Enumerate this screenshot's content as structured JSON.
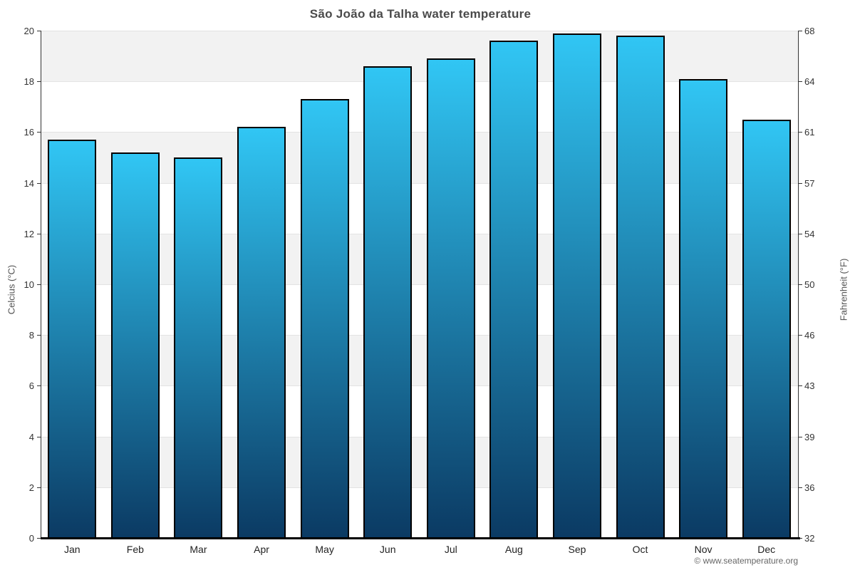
{
  "title": "São João da Talha water temperature",
  "footer": {
    "credit": "© www.seatemperature.org"
  },
  "chart_data": {
    "type": "bar",
    "title": "São João da Talha water temperature",
    "categories": [
      "Jan",
      "Feb",
      "Mar",
      "Apr",
      "May",
      "Jun",
      "Jul",
      "Aug",
      "Sep",
      "Oct",
      "Nov",
      "Dec"
    ],
    "values": [
      15.7,
      15.2,
      15.0,
      16.2,
      17.3,
      18.6,
      18.9,
      19.6,
      19.9,
      19.8,
      18.1,
      16.5
    ],
    "series_name": "water temperature",
    "xlabel": "",
    "ylabel_left": "Celcius (°C)",
    "ylabel_right": "Fahrenheit (°F)",
    "ylim": [
      0,
      20
    ],
    "ytick_step": 2,
    "yticks_celsius": [
      "0",
      "2",
      "4",
      "6",
      "8",
      "10",
      "12",
      "14",
      "16",
      "18",
      "20"
    ],
    "yticks_fahrenheit": [
      "32",
      "36",
      "39",
      "43",
      "46",
      "50",
      "54",
      "57",
      "61",
      "64",
      "68"
    ],
    "grid": "alternating-horizontal-bands",
    "legend": "none",
    "colors": {
      "bar_gradient_top": "#31c6f4",
      "bar_gradient_bottom": "#0b3a63",
      "bar_border": "#000000",
      "band_gray": "#f2f2f2",
      "band_white": "#ffffff",
      "gridline": "#e3e3e3",
      "axis_line": "#333333",
      "title_text": "#4a4a4a",
      "tick_text": "#333333",
      "axis_title_text": "#555555",
      "footer_text": "#666666"
    }
  }
}
